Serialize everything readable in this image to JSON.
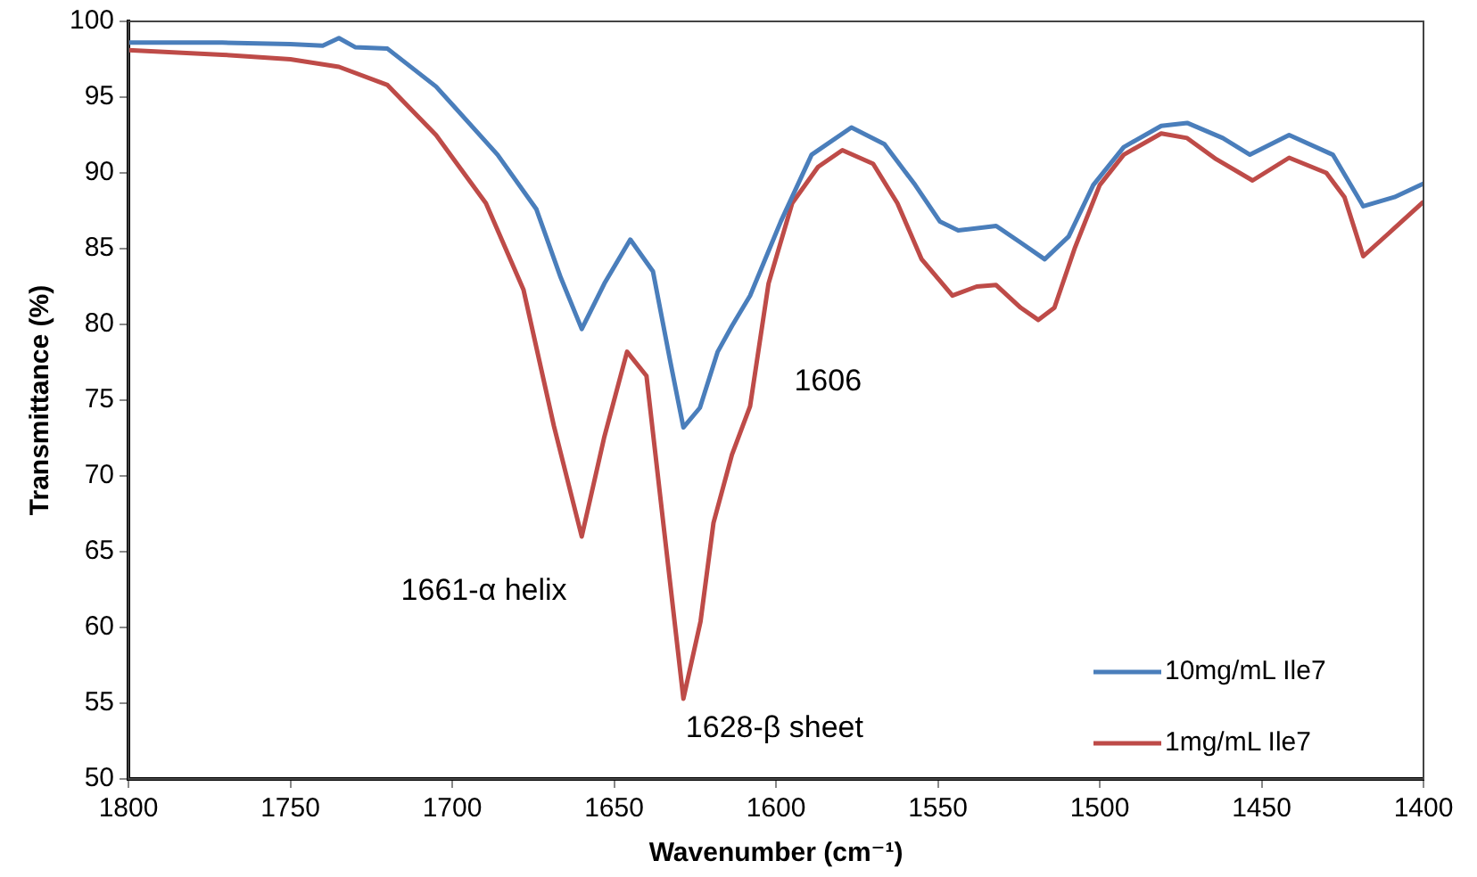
{
  "chart_data": {
    "type": "line",
    "xlabel": "Wavenumber (cm⁻¹)",
    "ylabel": "Transmittance (%)",
    "xlim": [
      1800,
      1400
    ],
    "xticks": [
      1800,
      1750,
      1700,
      1650,
      1600,
      1550,
      1500,
      1450,
      1400
    ],
    "ylim": [
      50,
      100
    ],
    "yticks": [
      50,
      55,
      60,
      65,
      70,
      75,
      80,
      85,
      90,
      95,
      100
    ],
    "grid": false,
    "legend": "bottom right",
    "marker": "none",
    "line_style": "solid",
    "series": [
      {
        "name": "10mg/mL Ile7",
        "color": "#4a7ebb",
        "x": [
          1800,
          1771,
          1750,
          1740,
          1735,
          1730,
          1720,
          1705,
          1686,
          1674,
          1666.5,
          1660,
          1653,
          1645,
          1638,
          1632.6,
          1628.6,
          1623.5,
          1618,
          1613.6,
          1608,
          1598.5,
          1589,
          1576.7,
          1566.5,
          1557,
          1549.4,
          1543.7,
          1532,
          1524.4,
          1517,
          1509.6,
          1502,
          1492.6,
          1481,
          1473,
          1462,
          1453.6,
          1441.5,
          1428,
          1418.6,
          1409,
          1400
        ],
        "values": [
          98.6,
          98.6,
          98.5,
          98.4,
          98.9,
          98.3,
          98.2,
          95.7,
          91.2,
          87.6,
          83.1,
          79.7,
          82.7,
          85.6,
          83.5,
          77.5,
          73.2,
          74.5,
          78.2,
          79.9,
          81.9,
          86.8,
          91.2,
          93.0,
          91.9,
          89.2,
          86.8,
          86.2,
          86.5,
          85.4,
          84.3,
          85.8,
          89.2,
          91.7,
          93.1,
          93.3,
          92.3,
          91.2,
          92.5,
          91.2,
          87.8,
          88.4,
          89.3
        ]
      },
      {
        "name": "1mg/mL Ile7",
        "color": "#be4b48",
        "x": [
          1800,
          1771,
          1750,
          1735,
          1720,
          1705,
          1689.6,
          1678,
          1668.6,
          1660,
          1653,
          1646,
          1640,
          1634.6,
          1628.6,
          1623.3,
          1619.3,
          1613.6,
          1608,
          1602.3,
          1595,
          1587,
          1579.5,
          1570,
          1562.5,
          1555,
          1545.5,
          1538,
          1532,
          1524.4,
          1519,
          1514,
          1507.6,
          1500,
          1492.6,
          1481,
          1473,
          1464,
          1452.8,
          1441.5,
          1430,
          1424.4,
          1418.6,
          1410.8,
          1400
        ],
        "values": [
          98.1,
          97.8,
          97.5,
          97.0,
          95.8,
          92.5,
          88.0,
          82.3,
          73.3,
          66.0,
          72.6,
          78.2,
          76.6,
          66.5,
          55.3,
          60.4,
          66.9,
          71.4,
          74.6,
          82.7,
          88.0,
          90.4,
          91.5,
          90.6,
          88.0,
          84.3,
          81.9,
          82.5,
          82.6,
          81.1,
          80.3,
          81.1,
          85.1,
          89.2,
          91.2,
          92.6,
          92.3,
          90.9,
          89.5,
          91.0,
          90.0,
          88.4,
          84.5,
          86.0,
          88.1
        ]
      }
    ],
    "annotations": [
      {
        "text": "1661-α helix",
        "x": 1661,
        "y": 66.0
      },
      {
        "text": "1628-β sheet",
        "x": 1628,
        "y": 55.3
      },
      {
        "text": "1606",
        "x": 1606,
        "y": 77
      }
    ]
  }
}
